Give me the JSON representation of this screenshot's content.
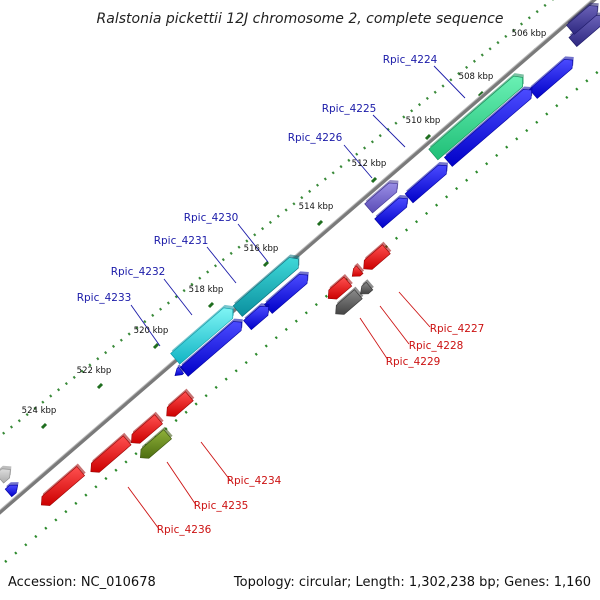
{
  "title": "Ralstonia pickettii 12J chromosome 2, complete sequence",
  "footer": {
    "accession": "Accession: NC_010678",
    "summary": "Topology: circular; Length: 1,302,238 bp; Genes: 1,160"
  },
  "kbp_ticks": [
    "506 kbp",
    "508 kbp",
    "510 kbp",
    "512 kbp",
    "514 kbp",
    "516 kbp",
    "518 kbp",
    "520 kbp",
    "522 kbp",
    "524 kbp"
  ],
  "gene_labels_forward": [
    "Rpic_4224",
    "Rpic_4225",
    "Rpic_4226",
    "Rpic_4230",
    "Rpic_4231",
    "Rpic_4232",
    "Rpic_4233"
  ],
  "gene_labels_reverse": [
    "Rpic_4227",
    "Rpic_4228",
    "Rpic_4229",
    "Rpic_4234",
    "Rpic_4235",
    "Rpic_4236"
  ],
  "colors": {
    "forward_label": "#1a1aa8",
    "reverse_label": "#cc1111",
    "blue_gene": "#1010dd",
    "red_gene": "#e01818",
    "backbone": "#777777"
  }
}
